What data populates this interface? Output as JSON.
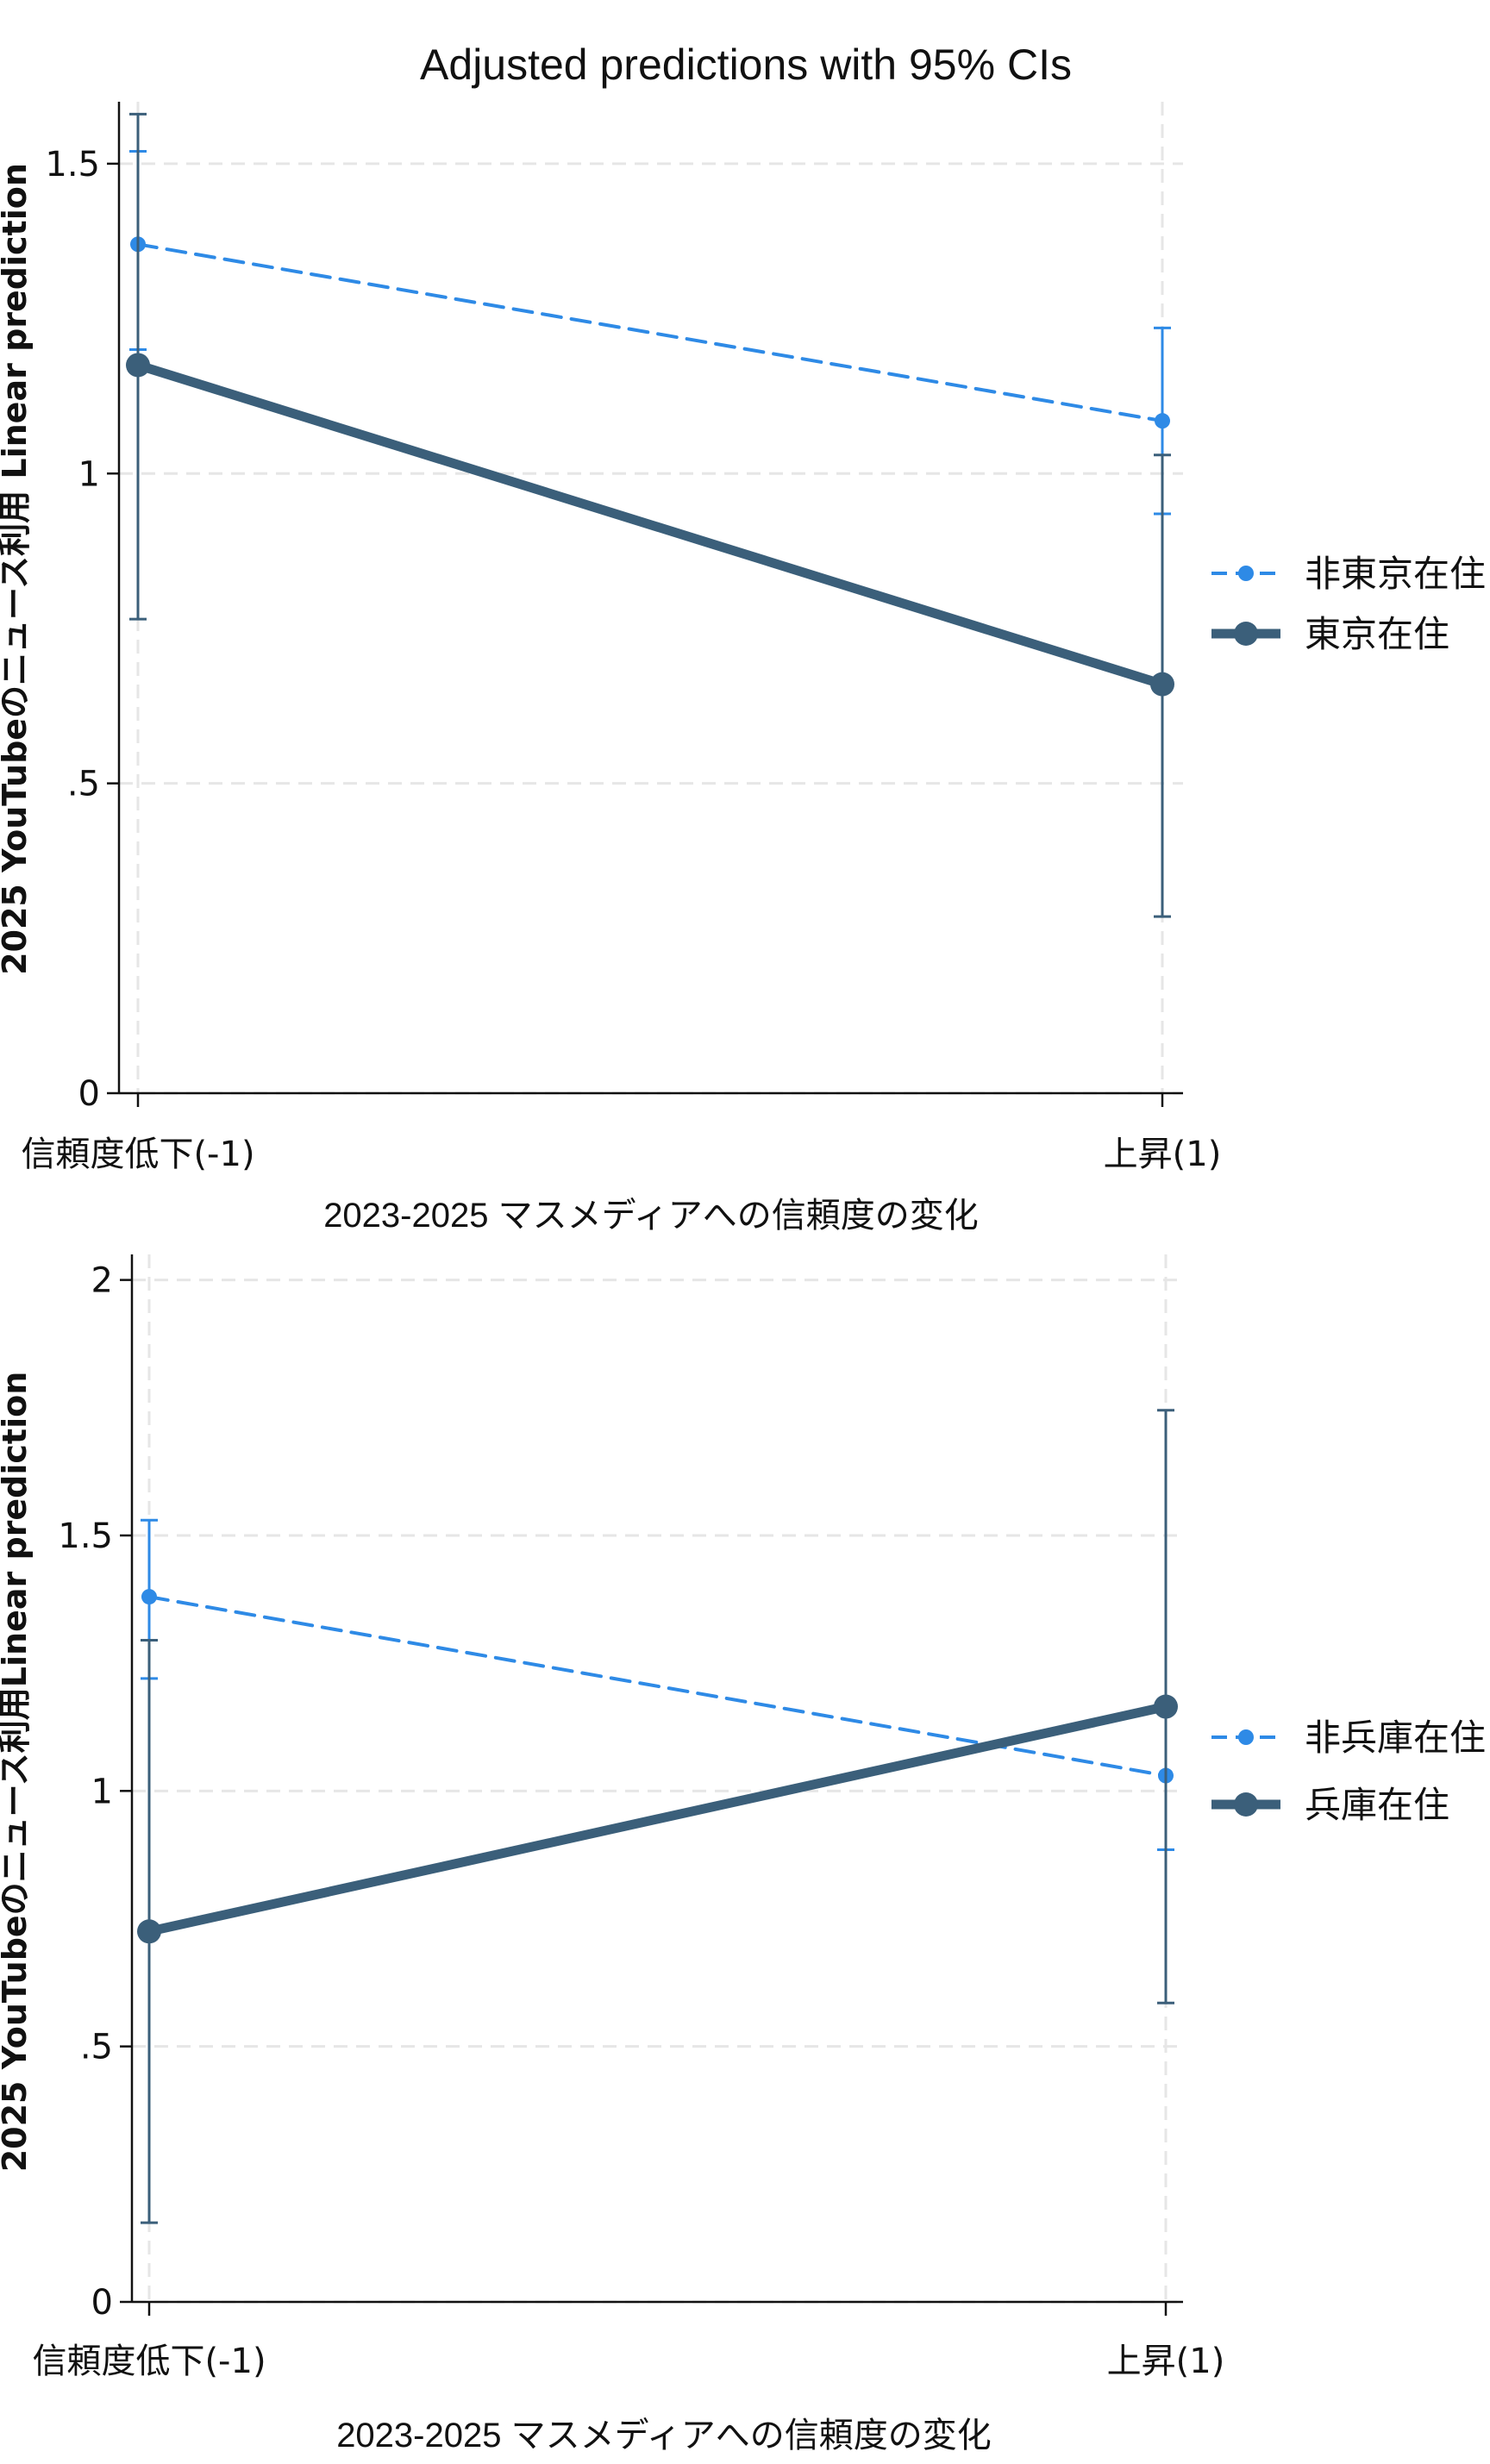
{
  "chart_data": [
    {
      "type": "line",
      "title": "Adjusted predictions with 95% CIs",
      "xlabel": "2023-2025 マスメディアへの信頼度の変化",
      "ylabel": "2025 YouTubeのニュース利用 Linear prediction",
      "categories": [
        "信頼度低下(-1)",
        "上昇(1)"
      ],
      "ylim": [
        0,
        1.6
      ],
      "yticks": [
        0,
        0.5,
        1,
        1.5
      ],
      "ytick_labels": [
        "0",
        ".5",
        "1",
        "1.5"
      ],
      "grid": true,
      "legend_position": "right",
      "series": [
        {
          "name": "非東京在住",
          "values": [
            1.37,
            1.085
          ],
          "ci_low": [
            1.2,
            0.935
          ],
          "ci_high": [
            1.52,
            1.235
          ],
          "color": "#2e8ae6",
          "style": "dashed"
        },
        {
          "name": "東京在住",
          "values": [
            1.175,
            0.66
          ],
          "ci_low": [
            0.765,
            0.285
          ],
          "ci_high": [
            1.58,
            1.03
          ],
          "color": "#3b5f7a",
          "style": "solid"
        }
      ]
    },
    {
      "type": "line",
      "title": "",
      "xlabel": "2023-2025 マスメディアへの信頼度の変化",
      "ylabel": "2025 YouTubeのニュース利用Linear prediction",
      "categories": [
        "信頼度低下(-1)",
        "上昇(1)"
      ],
      "ylim": [
        0,
        2.05
      ],
      "yticks": [
        0,
        0.5,
        1,
        1.5,
        2
      ],
      "ytick_labels": [
        "0",
        ".5",
        "1",
        "1.5",
        "2"
      ],
      "grid": true,
      "legend_position": "right",
      "series": [
        {
          "name": "非兵庫在住",
          "values": [
            1.38,
            1.03
          ],
          "ci_low": [
            1.22,
            0.885
          ],
          "ci_high": [
            1.53,
            1.175
          ],
          "color": "#2e8ae6",
          "style": "dashed"
        },
        {
          "name": "兵庫在住",
          "values": [
            0.725,
            1.165
          ],
          "ci_low": [
            0.155,
            0.585
          ],
          "ci_high": [
            1.295,
            1.745
          ],
          "color": "#3b5f7a",
          "style": "solid"
        }
      ]
    }
  ]
}
